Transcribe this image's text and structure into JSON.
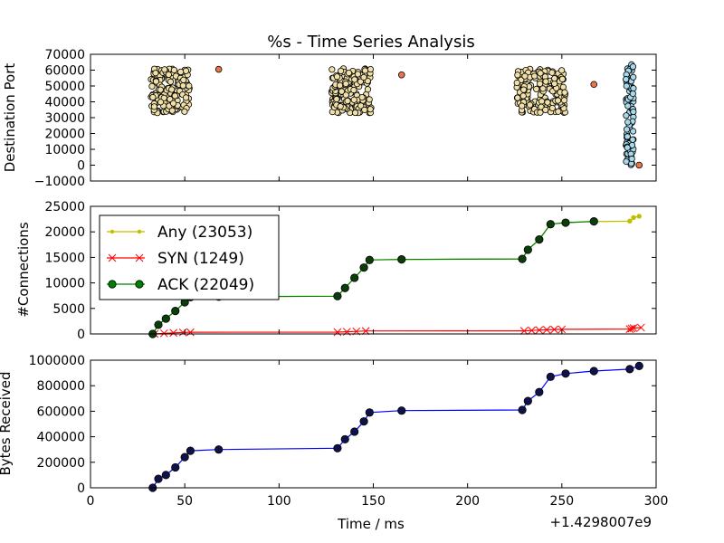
{
  "figure": {
    "title": "%s - Time Series Analysis",
    "xlabel": "Time / ms",
    "offset_label": "+1.4298007e9"
  },
  "chart_data": [
    {
      "type": "scatter",
      "ylabel": "Destination Port",
      "xlim": [
        0,
        300
      ],
      "ylim": [
        -10000,
        70000
      ],
      "yticks": [
        -10000,
        0,
        10000,
        20000,
        30000,
        40000,
        50000,
        60000,
        70000
      ],
      "ytick_labels": [
        "−10000",
        "0",
        "10000",
        "20000",
        "30000",
        "40000",
        "50000",
        "60000",
        "70000"
      ],
      "show_xtick_labels": false,
      "clusters": [
        {
          "x_range": [
            32,
            53
          ],
          "y_range": [
            33000,
            61000
          ],
          "count": 160,
          "color": "#f0e0a8"
        },
        {
          "x_range": [
            128,
            149
          ],
          "y_range": [
            33000,
            61000
          ],
          "count": 160,
          "color": "#f0e0a8"
        },
        {
          "x_range": [
            226,
            252
          ],
          "y_range": [
            33000,
            61000
          ],
          "count": 170,
          "color": "#f0e0a8"
        },
        {
          "x_range": [
            284,
            288
          ],
          "y_range": [
            0,
            65000
          ],
          "count": 90,
          "color": "#a8d8ec"
        }
      ],
      "points": [
        {
          "x": 68,
          "y": 60500,
          "color": "#e8764a"
        },
        {
          "x": 165,
          "y": 57000,
          "color": "#e8764a"
        },
        {
          "x": 267,
          "y": 51000,
          "color": "#e8764a"
        },
        {
          "x": 291,
          "y": 0,
          "color": "#e8764a"
        }
      ]
    },
    {
      "type": "line",
      "ylabel": "#Connections",
      "xlim": [
        0,
        300
      ],
      "ylim": [
        0,
        25000
      ],
      "yticks": [
        0,
        5000,
        10000,
        15000,
        20000,
        25000
      ],
      "show_xtick_labels": false,
      "legend_position": "upper-left",
      "series": [
        {
          "name": "Any (23053)",
          "color": "#bfbf00",
          "marker": "dot",
          "x": [
            33,
            36,
            40,
            45,
            50,
            53,
            68,
            131,
            135,
            140,
            145,
            148,
            165,
            229,
            232,
            238,
            244,
            252,
            267,
            286,
            288,
            291
          ],
          "y": [
            0,
            1800,
            3000,
            4500,
            6200,
            7200,
            7300,
            7400,
            9000,
            11000,
            13000,
            14500,
            14600,
            14700,
            16500,
            18500,
            21500,
            21800,
            22000,
            22100,
            22800,
            23053
          ]
        },
        {
          "name": "SYN (1249)",
          "color": "#ff0000",
          "marker": "x",
          "x": [
            34,
            39,
            44,
            49,
            53,
            131,
            136,
            141,
            146,
            230,
            234,
            238,
            242,
            246,
            250,
            286,
            287,
            288,
            292
          ],
          "y": [
            0,
            120,
            220,
            300,
            330,
            350,
            420,
            500,
            580,
            600,
            680,
            760,
            820,
            870,
            900,
            950,
            1050,
            1150,
            1249
          ]
        },
        {
          "name": "ACK (22049)",
          "color": "#008000",
          "marker": "circle",
          "x": [
            33,
            36,
            40,
            45,
            50,
            53,
            68,
            131,
            135,
            140,
            145,
            148,
            165,
            229,
            232,
            238,
            244,
            252,
            267
          ],
          "y": [
            0,
            1800,
            3000,
            4500,
            6200,
            7200,
            7300,
            7400,
            9000,
            11000,
            13000,
            14500,
            14600,
            14700,
            16500,
            18500,
            21500,
            21800,
            22049
          ]
        }
      ]
    },
    {
      "type": "line",
      "ylabel": "Bytes Received",
      "xlim": [
        0,
        300
      ],
      "ylim": [
        0,
        1000000
      ],
      "yticks": [
        0,
        200000,
        400000,
        600000,
        800000,
        1000000
      ],
      "xticks": [
        0,
        50,
        100,
        150,
        200,
        250,
        300
      ],
      "series": [
        {
          "color": "#0000ff",
          "marker": "circle",
          "x": [
            33,
            36,
            40,
            45,
            50,
            53,
            68,
            131,
            135,
            140,
            145,
            148,
            165,
            229,
            232,
            238,
            244,
            252,
            267,
            286,
            291
          ],
          "y": [
            0,
            70000,
            100000,
            160000,
            240000,
            290000,
            300000,
            310000,
            380000,
            440000,
            520000,
            590000,
            605000,
            610000,
            680000,
            750000,
            870000,
            895000,
            915000,
            930000,
            955000
          ]
        }
      ]
    }
  ]
}
